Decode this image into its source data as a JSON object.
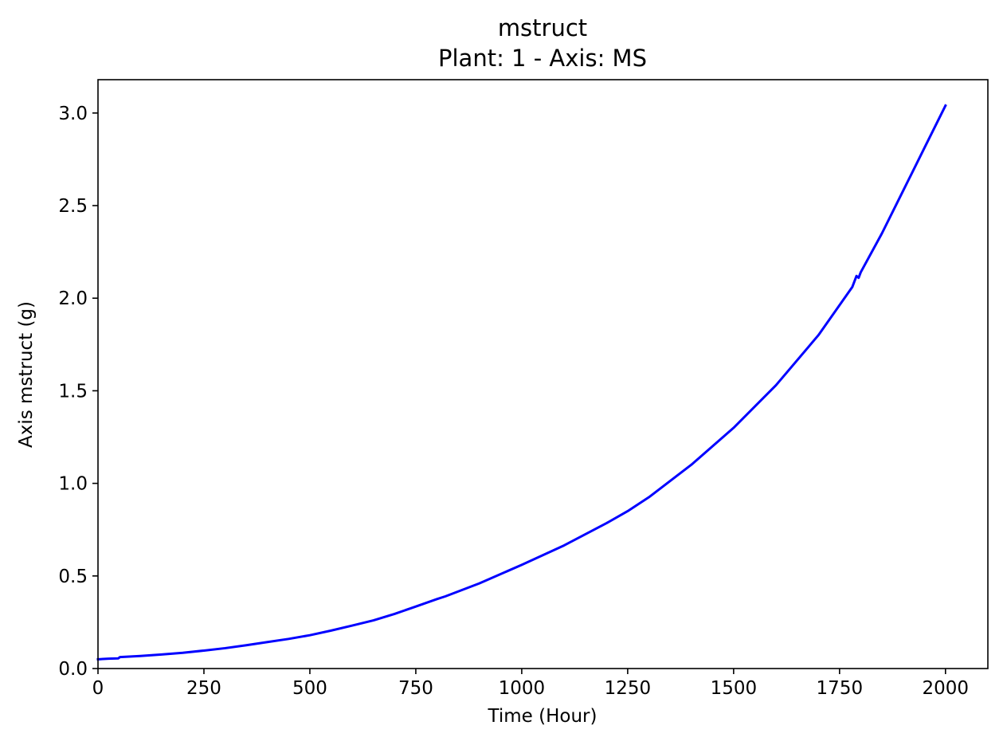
{
  "chart_data": {
    "type": "line",
    "title": "mstruct",
    "subtitle": "Plant: 1 - Axis: MS",
    "xlabel": "Time (Hour)",
    "ylabel": "Axis mstruct (g)",
    "xlim": [
      0,
      2100
    ],
    "ylim": [
      0,
      3.18
    ],
    "xticks": [
      0,
      250,
      500,
      750,
      1000,
      1250,
      1500,
      1750,
      2000
    ],
    "yticks": [
      0.0,
      0.5,
      1.0,
      1.5,
      2.0,
      2.5,
      3.0
    ],
    "xtick_labels": [
      "0",
      "250",
      "500",
      "750",
      "1000",
      "1250",
      "1500",
      "1750",
      "2000"
    ],
    "ytick_labels": [
      "0.0",
      "0.5",
      "1.0",
      "1.5",
      "2.0",
      "2.5",
      "3.0"
    ],
    "grid": false,
    "series": [
      {
        "color": "#0000ff",
        "x": [
          0,
          25,
          48,
          52,
          100,
          150,
          200,
          250,
          300,
          350,
          400,
          450,
          500,
          550,
          600,
          650,
          700,
          750,
          800,
          820,
          900,
          1000,
          1100,
          1200,
          1250,
          1300,
          1400,
          1500,
          1600,
          1700,
          1780,
          1790,
          1795,
          1800,
          1850,
          1900,
          1950,
          2000
        ],
        "y": [
          0.05,
          0.053,
          0.055,
          0.062,
          0.068,
          0.076,
          0.085,
          0.097,
          0.11,
          0.126,
          0.143,
          0.16,
          0.18,
          0.205,
          0.232,
          0.26,
          0.295,
          0.335,
          0.375,
          0.39,
          0.46,
          0.56,
          0.665,
          0.785,
          0.85,
          0.925,
          1.1,
          1.3,
          1.53,
          1.8,
          2.06,
          2.12,
          2.11,
          2.14,
          2.35,
          2.58,
          2.81,
          3.04
        ]
      }
    ]
  }
}
